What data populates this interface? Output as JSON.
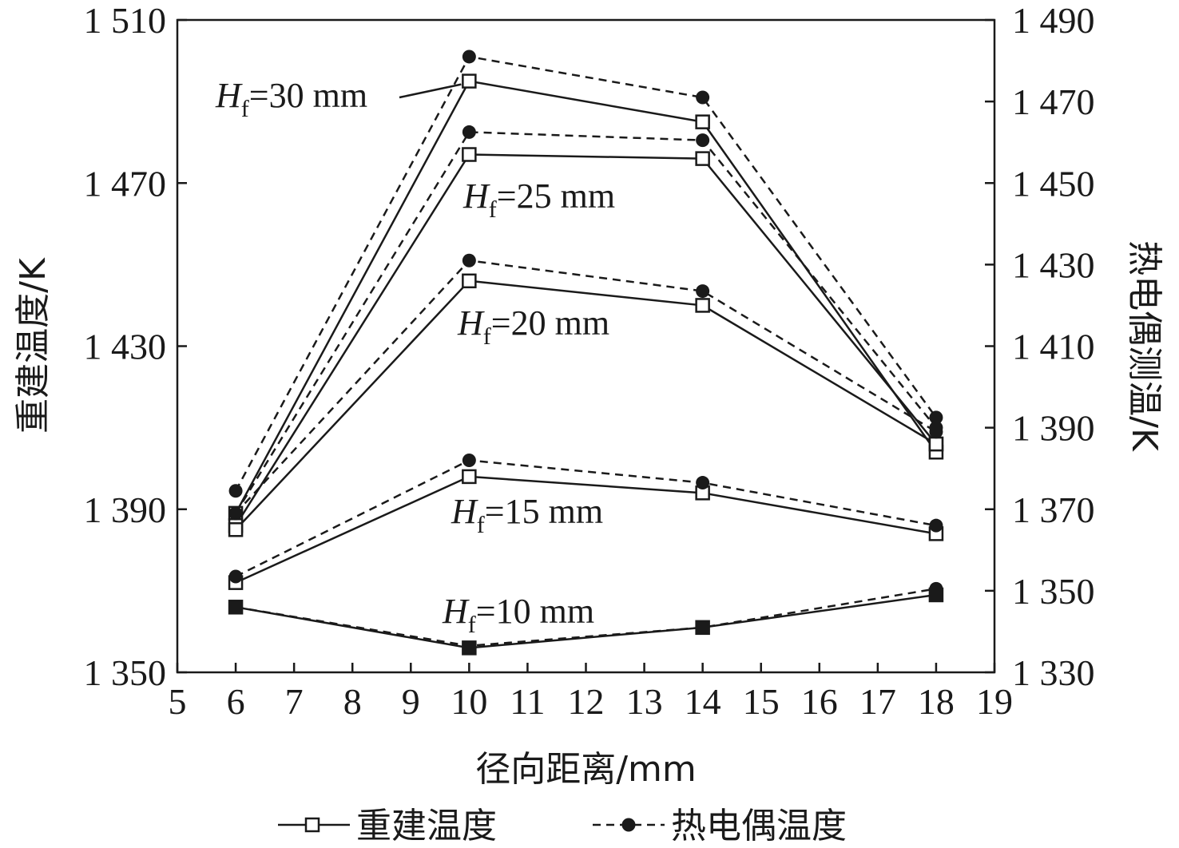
{
  "chart_data": {
    "type": "line",
    "xlabel": "径向距离/mm",
    "ylabel": "重建温度/K",
    "y2label": "热电偶测温/K",
    "xlim": [
      5,
      19
    ],
    "ylim": [
      1350,
      1510
    ],
    "y2lim": [
      1330,
      1490
    ],
    "xticks": [
      "5",
      "6",
      "7",
      "8",
      "9",
      "10",
      "11",
      "12",
      "13",
      "14",
      "15",
      "16",
      "17",
      "18",
      "19"
    ],
    "yticks": [
      {
        "v": 1350,
        "label": "1 350"
      },
      {
        "v": 1390,
        "label": "1 390"
      },
      {
        "v": 1430,
        "label": "1 430"
      },
      {
        "v": 1470,
        "label": "1 470"
      },
      {
        "v": 1510,
        "label": "1 510"
      }
    ],
    "y2ticks": [
      {
        "v": 1330,
        "label": "1 330"
      },
      {
        "v": 1350,
        "label": "1 350"
      },
      {
        "v": 1370,
        "label": "1 370"
      },
      {
        "v": 1390,
        "label": "1 390"
      },
      {
        "v": 1410,
        "label": "1 410"
      },
      {
        "v": 1430,
        "label": "1 430"
      },
      {
        "v": 1450,
        "label": "1 450"
      },
      {
        "v": 1470,
        "label": "1 470"
      },
      {
        "v": 1490,
        "label": "1 490"
      }
    ],
    "x": [
      6,
      10,
      14,
      18
    ],
    "series": [
      {
        "group": "Hf=30",
        "kind": "reconstructed",
        "values": [
          1389,
          1495,
          1485,
          1404
        ]
      },
      {
        "group": "Hf=30",
        "kind": "thermocouple",
        "values": [
          1374.5,
          1481,
          1471,
          1392.5
        ]
      },
      {
        "group": "Hf=25",
        "kind": "reconstructed",
        "values": [
          1386,
          1477,
          1476,
          1406
        ]
      },
      {
        "group": "Hf=25",
        "kind": "thermocouple",
        "values": [
          1369,
          1462.5,
          1460.5,
          1390
        ]
      },
      {
        "group": "Hf=20",
        "kind": "reconstructed",
        "values": [
          1385,
          1446,
          1440,
          1406
        ]
      },
      {
        "group": "Hf=20",
        "kind": "thermocouple",
        "values": [
          1369,
          1431,
          1423.5,
          1389
        ]
      },
      {
        "group": "Hf=15",
        "kind": "reconstructed",
        "values": [
          1372,
          1398,
          1394,
          1384
        ]
      },
      {
        "group": "Hf=15",
        "kind": "thermocouple",
        "values": [
          1353.5,
          1382,
          1376.5,
          1366
        ]
      },
      {
        "group": "Hf=10",
        "kind": "reconstructed",
        "values": [
          1366,
          1356,
          1361,
          1369
        ]
      },
      {
        "group": "Hf=10",
        "kind": "thermocouple",
        "values": [
          1346,
          1336.5,
          1341,
          1350.5
        ]
      }
    ],
    "annotations": [
      {
        "var": "H",
        "sub": "f",
        "rest": "=30 mm",
        "pointer_to": {
          "x": 10,
          "y": 1495
        }
      },
      {
        "var": "H",
        "sub": "f",
        "rest": "=25 mm"
      },
      {
        "var": "H",
        "sub": "f",
        "rest": "=20 mm"
      },
      {
        "var": "H",
        "sub": "f",
        "rest": "=15 mm"
      },
      {
        "var": "H",
        "sub": "f",
        "rest": "=10 mm"
      }
    ],
    "legend": {
      "placement": "bottom",
      "items": [
        {
          "label": "重建温度",
          "style": "solid line, open square marker"
        },
        {
          "label": "热电偶温度",
          "style": "dashed line, filled circle marker"
        }
      ]
    },
    "grid": false
  }
}
